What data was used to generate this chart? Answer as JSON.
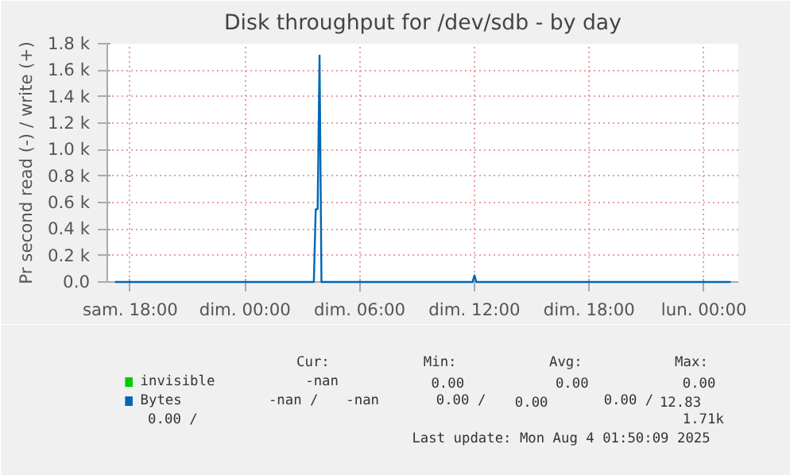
{
  "chart_data": {
    "type": "line",
    "title": "Disk throughput for /dev/sdb - by day",
    "ylabel": "Pr second read (-) / write (+)",
    "xlim": [
      "2025-08-02T16:48",
      "2025-08-04T01:48"
    ],
    "xticks": [
      {
        "value": "2025-08-02T18:00",
        "label": "sam. 18:00"
      },
      {
        "value": "2025-08-03T00:00",
        "label": "dim. 00:00"
      },
      {
        "value": "2025-08-03T06:00",
        "label": "dim. 06:00"
      },
      {
        "value": "2025-08-03T12:00",
        "label": "dim. 12:00"
      },
      {
        "value": "2025-08-03T18:00",
        "label": "dim. 18:00"
      },
      {
        "value": "2025-08-04T00:00",
        "label": "lun. 00:00"
      }
    ],
    "ylim": [
      0,
      1800
    ],
    "yticks": [
      {
        "value": 0,
        "label": "0.0"
      },
      {
        "value": 200,
        "label": "0.2 k"
      },
      {
        "value": 400,
        "label": "0.4 k"
      },
      {
        "value": 600,
        "label": "0.6 k"
      },
      {
        "value": 800,
        "label": "0.8 k"
      },
      {
        "value": 1000,
        "label": "1.0 k"
      },
      {
        "value": 1200,
        "label": "1.2 k"
      },
      {
        "value": 1400,
        "label": "1.4 k"
      },
      {
        "value": 1600,
        "label": "1.6 k"
      },
      {
        "value": 1800,
        "label": "1.8 k"
      }
    ],
    "grid": true,
    "legend": "bottom",
    "series": [
      {
        "name": "invisible",
        "color": "#00cc00"
      },
      {
        "name": "Bytes",
        "color": "#0066b3",
        "x": [
          "2025-08-02T17:12",
          "2025-08-03T03:36",
          "2025-08-03T03:42",
          "2025-08-03T03:48",
          "2025-08-03T03:54",
          "2025-08-03T04:00",
          "2025-08-03T11:54",
          "2025-08-03T12:00",
          "2025-08-03T12:06",
          "2025-08-04T01:24"
        ],
        "values": [
          0,
          0,
          550,
          550,
          1710,
          0,
          0,
          50,
          0,
          0
        ]
      }
    ],
    "annotations": [
      "Cur:",
      "Min:",
      "Avg:",
      "Max:",
      "-nan",
      "0.00",
      "0.00",
      "0.00",
      "-nan /",
      "-nan",
      "0.00 /",
      "0.00",
      "0.00 /",
      "12.83",
      "0.00 /",
      "1.71k",
      "Last update: Mon Aug  4 01:50:09 2025"
    ]
  }
}
